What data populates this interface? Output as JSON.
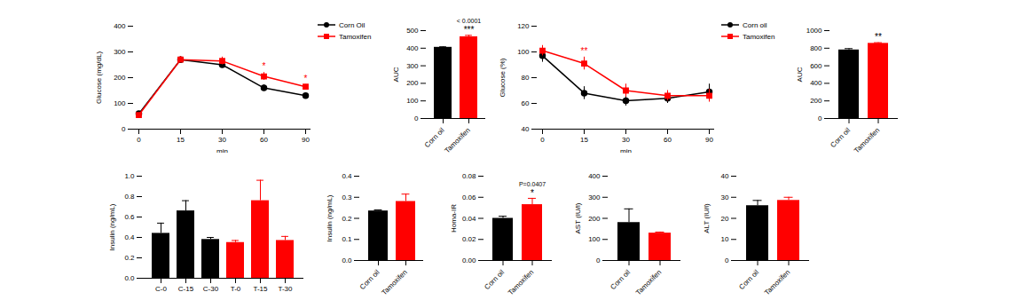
{
  "chart_data": [
    {
      "type": "line",
      "x_label": "min",
      "y_label": "Glucose (mg/dL)",
      "categories": [
        "0",
        "15",
        "30",
        "60",
        "90"
      ],
      "series": [
        {
          "name": "Corn Oil",
          "color": "#000000",
          "marker": "circle",
          "values": [
            60,
            270,
            250,
            160,
            130
          ],
          "errors": [
            5,
            12,
            12,
            12,
            5
          ]
        },
        {
          "name": "Tamoxifen",
          "color": "#ff0000",
          "marker": "square",
          "values": [
            55,
            270,
            265,
            205,
            165
          ],
          "errors": [
            5,
            12,
            15,
            15,
            8
          ]
        }
      ],
      "ylim": [
        0,
        400
      ],
      "yticks": [
        0,
        100,
        200,
        300,
        400
      ],
      "legend": "top-right",
      "annotations": [
        {
          "text": "*",
          "x": "60"
        },
        {
          "text": "*",
          "x": "90"
        }
      ]
    },
    {
      "type": "bar",
      "y_label": "AUC",
      "categories": [
        "Corn oil",
        "Tamoxifen"
      ],
      "values": [
        405,
        465
      ],
      "errors": [
        3,
        8
      ],
      "colors": [
        "#000000",
        "#ff0000"
      ],
      "ylim": [
        0,
        500
      ],
      "yticks": [
        0,
        100,
        200,
        300,
        400,
        500
      ],
      "annotations": [
        {
          "text": "***",
          "x": "Tamoxifen"
        },
        {
          "text": "< 0.0001",
          "x": "Tamoxifen"
        }
      ]
    },
    {
      "type": "line",
      "x_label": "min",
      "y_label": "Glucose (%)",
      "categories": [
        "0",
        "15",
        "30",
        "60",
        "90"
      ],
      "series": [
        {
          "name": "Corn oil",
          "color": "#000000",
          "marker": "circle",
          "values": [
            97,
            68,
            62,
            64,
            69
          ],
          "errors": [
            5,
            5,
            4,
            4,
            6
          ]
        },
        {
          "name": "Tamoxifen",
          "color": "#ff0000",
          "marker": "square",
          "values": [
            101,
            91,
            70,
            66,
            66
          ],
          "errors": [
            4,
            5,
            5,
            4,
            5
          ]
        }
      ],
      "ylim": [
        40,
        120
      ],
      "yticks": [
        40,
        60,
        80,
        100,
        120
      ],
      "legend": "top-right",
      "annotations": [
        {
          "text": "**",
          "x": "15"
        }
      ]
    },
    {
      "type": "bar",
      "y_label": "AUC",
      "categories": [
        "Corn oil",
        "Tamoxifen"
      ],
      "values": [
        780,
        855
      ],
      "errors": [
        15,
        8
      ],
      "colors": [
        "#000000",
        "#ff0000"
      ],
      "ylim": [
        0,
        1000
      ],
      "yticks": [
        0,
        200,
        400,
        600,
        800,
        1000
      ],
      "annotations": [
        {
          "text": "**",
          "x": "Tamoxifen"
        }
      ]
    },
    {
      "type": "bar",
      "y_label": "Insulin (ng/mL)",
      "categories": [
        "C-0",
        "C-15",
        "C-30",
        "T-0",
        "T-15",
        "T-30"
      ],
      "values": [
        0.44,
        0.66,
        0.38,
        0.35,
        0.76,
        0.37
      ],
      "errors": [
        0.1,
        0.1,
        0.02,
        0.02,
        0.2,
        0.04
      ],
      "colors": [
        "#000000",
        "#000000",
        "#000000",
        "#ff0000",
        "#ff0000",
        "#ff0000"
      ],
      "ylim": [
        0,
        1
      ],
      "yticks": [
        {
          "value": 0,
          "label": "0.0"
        },
        0.2,
        0.4,
        0.6,
        0.8,
        {
          "value": 1,
          "label": "1.0"
        }
      ]
    },
    {
      "type": "bar",
      "y_label": "Insulin (ng/mL)",
      "categories": [
        "Corn oil",
        "Tamoxifen"
      ],
      "values": [
        0.235,
        0.28
      ],
      "errors": [
        0.005,
        0.035
      ],
      "colors": [
        "#000000",
        "#ff0000"
      ],
      "ylim": [
        0,
        0.4
      ],
      "yticks": [
        {
          "value": 0,
          "label": "0.0"
        },
        0.1,
        0.2,
        0.3,
        0.4
      ]
    },
    {
      "type": "bar",
      "y_label": "Homa-IR",
      "categories": [
        "Corn oil",
        "Tamoxifen"
      ],
      "values": [
        0.04,
        0.053
      ],
      "errors": [
        0.002,
        0.006
      ],
      "colors": [
        "#000000",
        "#ff0000"
      ],
      "ylim": [
        0,
        0.08
      ],
      "yticks": [
        {
          "value": 0,
          "label": "0.00"
        },
        {
          "value": 0.02,
          "label": "0.02"
        },
        {
          "value": 0.04,
          "label": "0.04"
        },
        {
          "value": 0.06,
          "label": "0.06"
        },
        {
          "value": 0.08,
          "label": "0.08"
        }
      ],
      "annotations": [
        {
          "text": "*",
          "x": "Tamoxifen"
        },
        {
          "text": "P=0.0407",
          "x": "Tamoxifen"
        }
      ]
    },
    {
      "type": "bar",
      "y_label": "AST (IU/l)",
      "categories": [
        "Corn oil",
        "Tamoxifen"
      ],
      "values": [
        180,
        130
      ],
      "errors": [
        65,
        5
      ],
      "colors": [
        "#000000",
        "#ff0000"
      ],
      "ylim": [
        0,
        400
      ],
      "yticks": [
        0,
        100,
        200,
        300,
        400
      ]
    },
    {
      "type": "bar",
      "y_label": "ALT (IU/l)",
      "categories": [
        "Corn oil",
        "Tamoxifen"
      ],
      "values": [
        26,
        28.5
      ],
      "errors": [
        2.5,
        1.5
      ],
      "colors": [
        "#000000",
        "#ff0000"
      ],
      "ylim": [
        0,
        40
      ],
      "yticks": [
        0,
        10,
        20,
        30,
        40
      ]
    }
  ]
}
